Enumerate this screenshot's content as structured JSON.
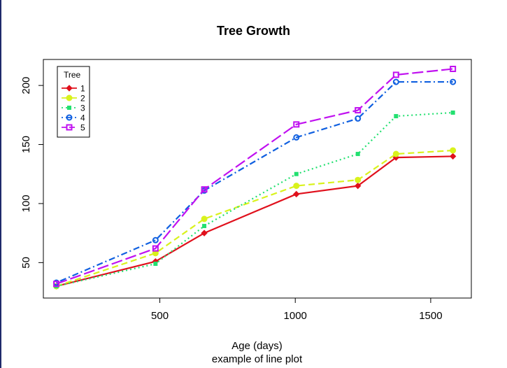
{
  "chart_data": {
    "type": "line",
    "title": "Tree Growth",
    "xlabel": "Age (days)",
    "subtitle": "example of line plot",
    "ylabel": "",
    "x": [
      118,
      484,
      664,
      1004,
      1231,
      1372,
      1582
    ],
    "xlim": [
      70,
      1650
    ],
    "ylim": [
      20,
      222
    ],
    "x_ticks": [
      500,
      1000,
      1500
    ],
    "y_ticks": [
      50,
      100,
      150,
      200
    ],
    "grid": false,
    "legend": {
      "title": "Tree",
      "position": "top-left"
    },
    "series": [
      {
        "name": "1",
        "color": "#e0101c",
        "dash": "solid",
        "marker": "diamond",
        "values": [
          30,
          51,
          75,
          108,
          115,
          139,
          140
        ]
      },
      {
        "name": "2",
        "color": "#d9f21c",
        "dash": "dashed",
        "marker": "circle-filled",
        "values": [
          30,
          58,
          87,
          115,
          120,
          142,
          145
        ]
      },
      {
        "name": "3",
        "color": "#23e070",
        "dash": "dotted",
        "marker": "square-small",
        "values": [
          30,
          49,
          81,
          125,
          142,
          174,
          177
        ]
      },
      {
        "name": "4",
        "color": "#1060e0",
        "dash": "dotdash",
        "marker": "circle-open",
        "values": [
          33,
          69,
          111,
          156,
          172,
          203,
          203
        ]
      },
      {
        "name": "5",
        "color": "#c010f0",
        "dash": "longdash",
        "marker": "square-open",
        "values": [
          32,
          62,
          112,
          167,
          179,
          209,
          214
        ]
      }
    ]
  }
}
